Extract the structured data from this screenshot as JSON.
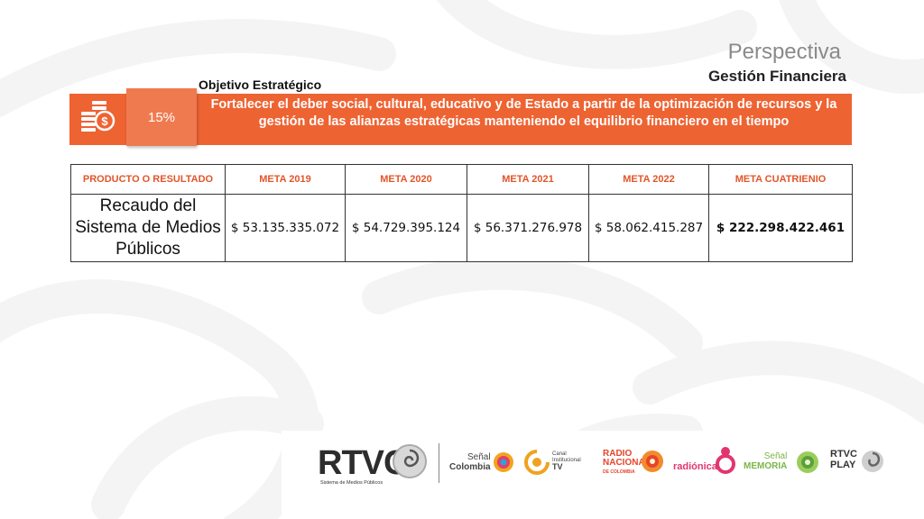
{
  "header": {
    "title": "Perspectiva",
    "subtitle": "Gestión Financiera"
  },
  "objective": {
    "label": "Objetivo Estratégico",
    "percent": "15%",
    "text": "Fortalecer el deber social, cultural, educativo y de Estado a partir de la optimización de recursos  y  la gestión de las alianzas estratégicas manteniendo el equilibrio financiero en el tiempo"
  },
  "table": {
    "headers": [
      "PRODUCTO O RESULTADO",
      "META 2019",
      "META 2020",
      "META 2021",
      "META 2022",
      "META CUATRIENIO"
    ],
    "row": {
      "product": "Recaudo del Sistema de Medios Públicos",
      "values": [
        "$ 53.135.335.072",
        "$ 54.729.395.124",
        "$ 56.371.276.978",
        "$ 58.062.415.287",
        "$ 222.298.422.461"
      ]
    }
  },
  "logos": {
    "rtvc": "RTVC",
    "rtvc_sub": "Sistema de Medios Públicos",
    "senal_colombia": [
      "Señal",
      "Colombia"
    ],
    "canal_institucional": [
      "Canal",
      "Institucional",
      "TV"
    ],
    "radio_nacional": [
      "RADIO",
      "NACIONAL",
      "DE COLOMBIA"
    ],
    "radionica": "radiónica",
    "senal_memoria": [
      "Señal",
      "MEMORIA"
    ],
    "rtvc_play": [
      "RTVC",
      "PLAY"
    ]
  },
  "colors": {
    "banner": "#ee6332",
    "percent_box": "#f07a4f",
    "header_text": "#e2552a"
  },
  "icons": [
    "coins-dollar-icon",
    "rtvc-spiral-icon",
    "senal-colombia-icon",
    "canal-institucional-icon",
    "radio-nacional-icon",
    "radionica-icon",
    "senal-memoria-icon",
    "rtvc-play-icon"
  ]
}
